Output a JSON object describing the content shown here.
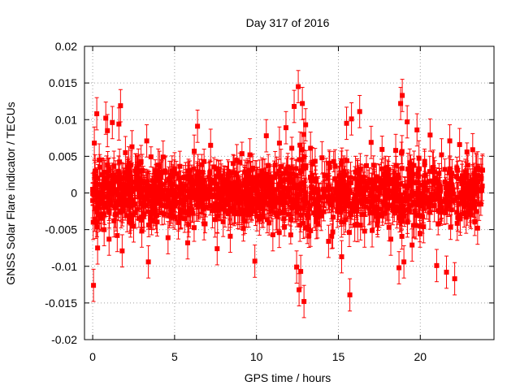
{
  "chart_data": {
    "type": "scatter",
    "title": "Day 317 of 2016",
    "xlabel": "GPS time / hours",
    "ylabel": "GNSS Solar Flare indicator / TECUs",
    "xlim": [
      -0.5,
      24.5
    ],
    "ylim": [
      -0.02,
      0.02
    ],
    "x_ticks": [
      0,
      5,
      10,
      15,
      20
    ],
    "x_tick_labels": [
      "0",
      "5",
      "10",
      "15",
      "20"
    ],
    "y_ticks": [
      -0.02,
      -0.015,
      -0.01,
      -0.005,
      0,
      0.005,
      0.01,
      0.015,
      0.02
    ],
    "y_tick_labels": [
      "-0.02",
      "-0.015",
      "-0.01",
      "-0.005",
      "0",
      "0.005",
      "0.01",
      "0.015",
      "0.02"
    ],
    "grid": true,
    "marker": "square",
    "error_bars": true,
    "color": "#ff0000",
    "series": [
      {
        "x": [
          0.0,
          0.05,
          0.1,
          0.15,
          0.2,
          0.25,
          0.3,
          0.35,
          0.4,
          0.5,
          0.6,
          0.7,
          0.8,
          0.9,
          1.0,
          1.1,
          1.2,
          1.3,
          1.4,
          1.5,
          1.6,
          1.7,
          1.8,
          1.9,
          2.0,
          2.1,
          2.2,
          2.3,
          2.4,
          2.5,
          2.7,
          3.0,
          3.3,
          3.4,
          3.6,
          4.0,
          4.3,
          4.6,
          5.0,
          5.4,
          5.8,
          6.2,
          6.4,
          6.8,
          7.2,
          7.6,
          8.0,
          8.4,
          8.8,
          9.2,
          9.6,
          9.9,
          10.2,
          10.6,
          11.0,
          11.4,
          11.8,
          12.1,
          12.3,
          12.45,
          12.55,
          12.6,
          12.7,
          12.8,
          12.9,
          13.0,
          13.1,
          13.3,
          13.6,
          14.0,
          14.4,
          14.8,
          15.2,
          15.5,
          15.7,
          15.8,
          16.0,
          16.3,
          16.6,
          17.0,
          17.4,
          17.8,
          18.2,
          18.5,
          18.7,
          18.8,
          18.9,
          19.0,
          19.2,
          19.5,
          19.8,
          20.2,
          20.6,
          21.0,
          21.3,
          21.6,
          21.8,
          22.1,
          22.4,
          22.8,
          23.2,
          23.5,
          23.8
        ],
        "y": [
          0.0005,
          -0.0126,
          0.0068,
          0.003,
          -0.004,
          0.0108,
          -0.0075,
          -0.002,
          0.0045,
          -0.003,
          0.0025,
          -0.005,
          0.0102,
          0.0085,
          -0.0063,
          0.001,
          0.0096,
          -0.0038,
          0.0022,
          -0.0058,
          0.0094,
          0.0119,
          -0.0079,
          0.0012,
          0.0055,
          -0.0031,
          0.0041,
          -0.0017,
          0.0063,
          -0.0045,
          0.0028,
          -0.0052,
          0.0071,
          -0.0094,
          -0.0018,
          0.0038,
          0.0049,
          -0.0061,
          0.0033,
          -0.0026,
          -0.0068,
          0.0057,
          0.0091,
          -0.0042,
          0.0065,
          -0.0076,
          0.0015,
          -0.0059,
          0.0044,
          -0.0035,
          0.0052,
          -0.0093,
          0.0023,
          0.0078,
          -0.0057,
          0.0068,
          0.0089,
          -0.0036,
          0.0118,
          -0.0101,
          0.0145,
          -0.0132,
          -0.0107,
          0.0122,
          -0.0148,
          0.0093,
          -0.0047,
          0.0061,
          -0.0029,
          0.0048,
          -0.0066,
          0.0037,
          -0.0087,
          0.0095,
          -0.0139,
          0.0101,
          -0.0044,
          0.0111,
          -0.0052,
          0.0069,
          -0.0038,
          0.0026,
          -0.0063,
          0.0058,
          -0.0102,
          0.0122,
          0.0133,
          -0.0094,
          0.0097,
          -0.0071,
          0.0086,
          -0.0046,
          0.0079,
          -0.0099,
          0.0052,
          -0.0108,
          0.0071,
          -0.0117,
          0.0066,
          -0.0033,
          0.0059,
          -0.0048,
          0.0031
        ]
      }
    ]
  }
}
